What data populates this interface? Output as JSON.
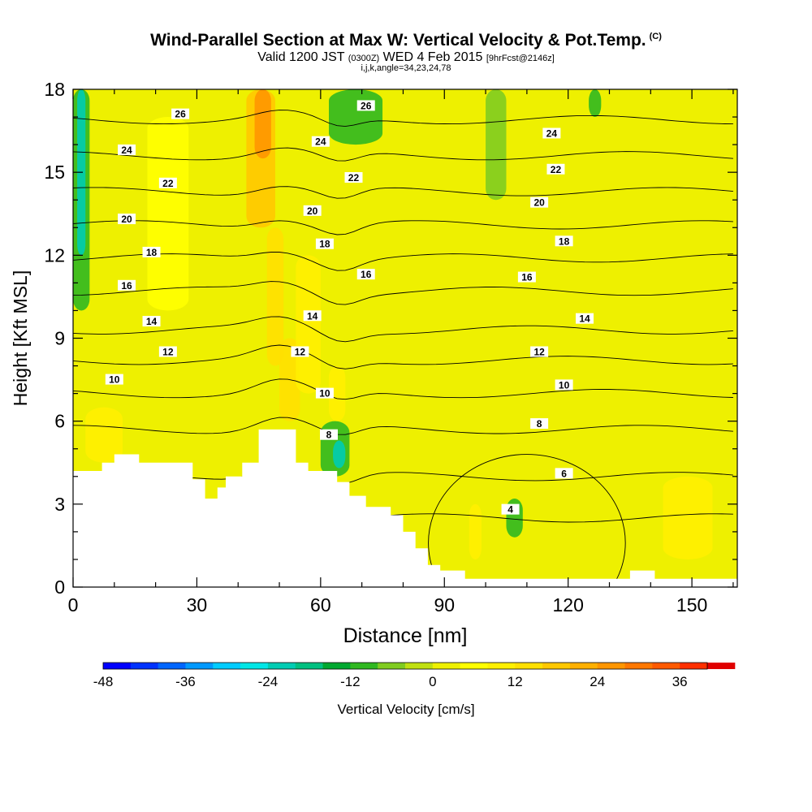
{
  "title": {
    "main": "Wind-Parallel Section at Max W: Vertical Velocity & Pot.Temp.",
    "tag": "(C)",
    "sub_prefix": "Valid 1200 JST",
    "sub_utc": "(0300Z)",
    "sub_date": "WED 4 Feb 2015",
    "sub_fcst": "[9hrFcst@2146z]",
    "ijk": "i,j,k,angle=34,23,24,78"
  },
  "chart_data": {
    "type": "heatmap",
    "xlabel": "Distance [nm]",
    "ylabel": "Height [Kft MSL]",
    "xlim": [
      0,
      161
    ],
    "ylim": [
      0,
      18
    ],
    "xticks": [
      0,
      30,
      60,
      90,
      120,
      150
    ],
    "yticks": [
      0,
      3,
      6,
      9,
      12,
      15,
      18
    ],
    "background_value": 3,
    "velocity_cells": [
      {
        "x0": 0,
        "x1": 4,
        "y0": 10,
        "y1": 18,
        "value": -12
      },
      {
        "x0": 1,
        "x1": 3,
        "y0": 12,
        "y1": 18,
        "value": -24
      },
      {
        "x0": 42,
        "x1": 49,
        "y0": 13,
        "y1": 18,
        "value": 18
      },
      {
        "x0": 44,
        "x1": 48,
        "y0": 15.5,
        "y1": 18,
        "value": 24
      },
      {
        "x0": 47,
        "x1": 51,
        "y0": 8,
        "y1": 13,
        "value": 12
      },
      {
        "x0": 50,
        "x1": 55,
        "y0": 6,
        "y1": 9,
        "value": 12
      },
      {
        "x0": 54,
        "x1": 60,
        "y0": 7,
        "y1": 12,
        "value": 9
      },
      {
        "x0": 60,
        "x1": 67,
        "y0": 4,
        "y1": 6,
        "value": -12
      },
      {
        "x0": 63,
        "x1": 66,
        "y0": 4.3,
        "y1": 5.3,
        "value": -24
      },
      {
        "x0": 62,
        "x1": 66,
        "y0": 6,
        "y1": 8,
        "value": 9
      },
      {
        "x0": 62,
        "x1": 75,
        "y0": 16,
        "y1": 18,
        "value": -9
      },
      {
        "x0": 100,
        "x1": 105,
        "y0": 14,
        "y1": 18,
        "value": -6
      },
      {
        "x0": 125,
        "x1": 128,
        "y0": 17,
        "y1": 18,
        "value": -9
      },
      {
        "x0": 143,
        "x1": 155,
        "y0": 1,
        "y1": 4,
        "value": 9
      },
      {
        "x0": 96,
        "x1": 99,
        "y0": 1,
        "y1": 3,
        "value": 9
      },
      {
        "x0": 105,
        "x1": 109,
        "y0": 1.8,
        "y1": 3.2,
        "value": -9
      },
      {
        "x0": 18,
        "x1": 28,
        "y0": 10,
        "y1": 17,
        "value": 6
      },
      {
        "x0": 3,
        "x1": 12,
        "y0": 4.5,
        "y1": 6.5,
        "value": 9
      }
    ],
    "terrain_top_kft": [
      {
        "x0": 0,
        "x1": 7,
        "top": 4.2
      },
      {
        "x0": 7,
        "x1": 10,
        "top": 4.5
      },
      {
        "x0": 10,
        "x1": 16,
        "top": 4.8
      },
      {
        "x0": 16,
        "x1": 29,
        "top": 4.5
      },
      {
        "x0": 29,
        "x1": 32,
        "top": 3.9
      },
      {
        "x0": 32,
        "x1": 35,
        "top": 3.2
      },
      {
        "x0": 35,
        "x1": 37,
        "top": 3.6
      },
      {
        "x0": 37,
        "x1": 41,
        "top": 4.0
      },
      {
        "x0": 41,
        "x1": 45,
        "top": 4.5
      },
      {
        "x0": 45,
        "x1": 54,
        "top": 5.7
      },
      {
        "x0": 54,
        "x1": 57,
        "top": 4.5
      },
      {
        "x0": 57,
        "x1": 64,
        "top": 4.2
      },
      {
        "x0": 64,
        "x1": 67,
        "top": 3.8
      },
      {
        "x0": 67,
        "x1": 71,
        "top": 3.3
      },
      {
        "x0": 71,
        "x1": 77,
        "top": 2.9
      },
      {
        "x0": 77,
        "x1": 80,
        "top": 2.6
      },
      {
        "x0": 80,
        "x1": 83,
        "top": 2.0
      },
      {
        "x0": 83,
        "x1": 86,
        "top": 1.4
      },
      {
        "x0": 86,
        "x1": 89,
        "top": 0.8
      },
      {
        "x0": 89,
        "x1": 95,
        "top": 0.6
      },
      {
        "x0": 95,
        "x1": 135,
        "top": 0.3
      },
      {
        "x0": 135,
        "x1": 141,
        "top": 0.6
      },
      {
        "x0": 141,
        "x1": 161,
        "top": 0.3
      }
    ],
    "theta_contours": [
      {
        "level": 4,
        "base": 2.5,
        "label_x": 106,
        "label_y": 2.8
      },
      {
        "level": 6,
        "base": 4.0,
        "label_x": 119,
        "label_y": 4.1
      },
      {
        "level": 8,
        "base": 5.7,
        "label_x": 113,
        "label_y": 5.9
      },
      {
        "level": 10,
        "base": 7.0,
        "label_x": 10,
        "label_y": 7.5
      },
      {
        "level": 12,
        "base": 8.2,
        "label_x": 23,
        "label_y": 8.5
      },
      {
        "level": 14,
        "base": 9.3,
        "label_x": 19,
        "label_y": 9.6
      },
      {
        "level": 16,
        "base": 10.7,
        "label_x": 13,
        "label_y": 10.9
      },
      {
        "level": 18,
        "base": 11.9,
        "label_x": 19,
        "label_y": 12.1
      },
      {
        "level": 20,
        "base": 13.1,
        "label_x": 13,
        "label_y": 13.3
      },
      {
        "level": 22,
        "base": 14.3,
        "label_x": 23,
        "label_y": 14.6
      },
      {
        "level": 24,
        "base": 15.6,
        "label_x": 13,
        "label_y": 15.8
      },
      {
        "level": 26,
        "base": 16.9,
        "label_x": 26,
        "label_y": 17.1
      }
    ],
    "extra_contour_labels": [
      {
        "text": "8",
        "x": 62,
        "y": 5.5
      },
      {
        "text": "10",
        "x": 61,
        "y": 7.0
      },
      {
        "text": "12",
        "x": 55,
        "y": 8.5
      },
      {
        "text": "14",
        "x": 58,
        "y": 9.8
      },
      {
        "text": "16",
        "x": 71,
        "y": 11.3
      },
      {
        "text": "18",
        "x": 61,
        "y": 12.4
      },
      {
        "text": "20",
        "x": 58,
        "y": 13.6
      },
      {
        "text": "22",
        "x": 68,
        "y": 14.8
      },
      {
        "text": "24",
        "x": 60,
        "y": 16.1
      },
      {
        "text": "26",
        "x": 71,
        "y": 17.4
      },
      {
        "text": "12",
        "x": 113,
        "y": 8.5
      },
      {
        "text": "14",
        "x": 124,
        "y": 9.7
      },
      {
        "text": "16",
        "x": 110,
        "y": 11.2
      },
      {
        "text": "18",
        "x": 119,
        "y": 12.5
      },
      {
        "text": "20",
        "x": 113,
        "y": 13.9
      },
      {
        "text": "22",
        "x": 117,
        "y": 15.1
      },
      {
        "text": "24",
        "x": 116,
        "y": 16.4
      },
      {
        "text": "10",
        "x": 119,
        "y": 7.3
      }
    ],
    "colorbar": {
      "title": "Vertical Velocity [cm/s]",
      "ticks": [
        -48,
        -36,
        -24,
        -12,
        0,
        12,
        24,
        36
      ],
      "bounds": [
        -48,
        40
      ],
      "step": 4,
      "colors": [
        "#0000ff",
        "#0033ff",
        "#0066ff",
        "#0099ff",
        "#00ccff",
        "#00e6e6",
        "#00ccb3",
        "#00c080",
        "#00a830",
        "#30b820",
        "#80cc20",
        "#c0e010",
        "#eef000",
        "#ffff00",
        "#fff000",
        "#ffe000",
        "#ffc800",
        "#ffb000",
        "#ff9600",
        "#ff7800",
        "#ff5a00",
        "#ff3000",
        "#e00000",
        "#c00040",
        "#a00070",
        "#800090",
        "#5a00a0"
      ]
    }
  }
}
